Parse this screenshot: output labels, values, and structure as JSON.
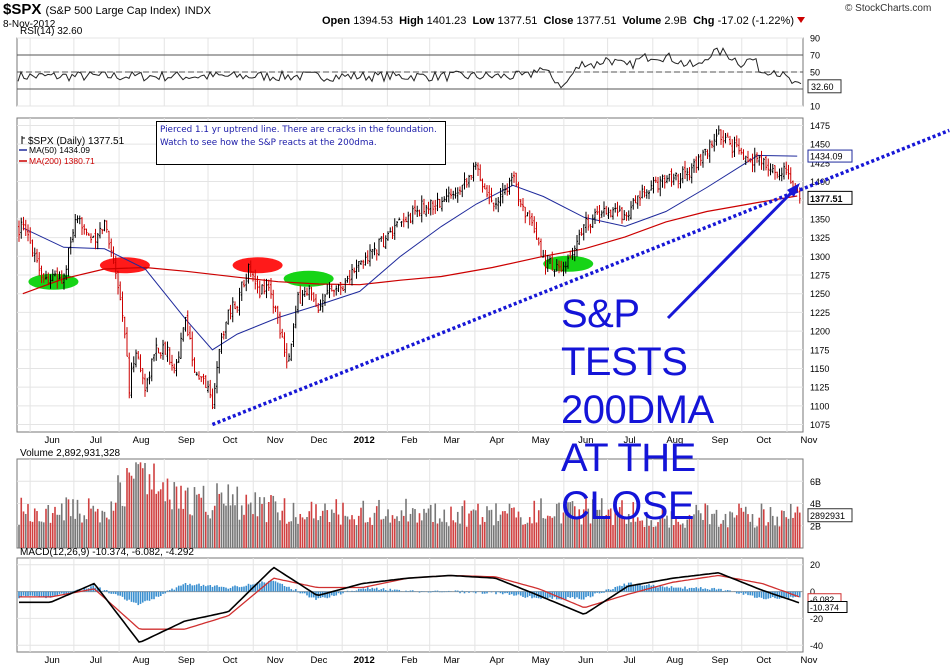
{
  "header": {
    "symbol": "$SPX",
    "name": "(S&P 500 Large Cap Index)",
    "exchange": "INDX",
    "date": "8-Nov-2012",
    "open_label": "Open",
    "open": "1394.53",
    "high_label": "High",
    "high": "1401.23",
    "low_label": "Low",
    "low": "1377.51",
    "close_label": "Close",
    "close": "1377.51",
    "volume_label": "Volume",
    "volume": "2.9B",
    "chg_label": "Chg",
    "chg": "-17.02 (-1.22%)",
    "brand": "© StockCharts.com"
  },
  "colors": {
    "up": "#000000",
    "down": "#cc0000",
    "ma50": "#1f2a9c",
    "ma200": "#cc0000",
    "trend": "#1717d6",
    "green": "#16d416",
    "red": "#ff1a1a",
    "histogram": "#3a8fd0",
    "grid": "#e4e4e4"
  },
  "annotation": {
    "note": "Pierced 1.1 yr uptrend line. There are cracks in the foundation. Watch to see how the S&P reacts at the 200dma.",
    "big_text": [
      "S&P",
      "TESTS",
      "200DMA",
      "AT THE",
      "CLOSE"
    ]
  },
  "chart_data": [
    {
      "type": "line",
      "panel": "rsi",
      "label": "RSI(14) 32.60",
      "last_value": "32.60",
      "y_ticks": [
        "90",
        "70",
        "50",
        "30",
        "10"
      ],
      "ylim": [
        10,
        90
      ],
      "levels": [
        70,
        50,
        30
      ],
      "x": [
        "2012-05-08",
        "2012-05-15",
        "2012-05-22",
        "2012-06-01",
        "2012-06-08",
        "2012-06-15",
        "2012-06-22",
        "2012-07-01",
        "2012-07-08",
        "2012-07-15",
        "2012-07-22",
        "2012-08-01",
        "2012-08-08",
        "2012-08-15",
        "2012-08-22",
        "2012-09-01",
        "2012-09-08",
        "2012-09-15",
        "2012-09-22",
        "2012-10-01",
        "2012-10-08",
        "2012-10-15",
        "2012-10-22",
        "2012-11-01",
        "2012-11-08"
      ],
      "values": [
        45,
        56,
        46,
        33,
        50,
        62,
        58,
        66,
        60,
        56,
        64,
        70,
        68,
        66,
        60,
        56,
        70,
        75,
        70,
        60,
        66,
        50,
        54,
        42,
        32.6
      ]
    },
    {
      "type": "line",
      "panel": "price",
      "title": "$SPX (Daily) 1377.51",
      "y_ticks": [
        "1475",
        "1450",
        "1425",
        "1400",
        "1375",
        "1350",
        "1325",
        "1300",
        "1275",
        "1250",
        "1225",
        "1200",
        "1175",
        "1150",
        "1125",
        "1100",
        "1075"
      ],
      "ylim": [
        1065,
        1485
      ],
      "x_ticks": [
        "Jun",
        "Jul",
        "Aug",
        "Sep",
        "Oct",
        "Nov",
        "Dec",
        "2012",
        "Feb",
        "Mar",
        "Apr",
        "May",
        "Jun",
        "Jul",
        "Aug",
        "Sep",
        "Oct",
        "Nov"
      ],
      "series": [
        {
          "name": "$SPX",
          "x": [
            "2011-05-27",
            "2011-06-03",
            "2011-06-10",
            "2011-06-17",
            "2011-06-24",
            "2011-07-01",
            "2011-07-08",
            "2011-07-15",
            "2011-07-22",
            "2011-07-29",
            "2011-08-05",
            "2011-08-08",
            "2011-08-12",
            "2011-08-19",
            "2011-08-26",
            "2011-09-02",
            "2011-09-09",
            "2011-09-16",
            "2011-09-23",
            "2011-09-30",
            "2011-10-04",
            "2011-10-07",
            "2011-10-14",
            "2011-10-21",
            "2011-10-28",
            "2011-11-04",
            "2011-11-11",
            "2011-11-18",
            "2011-11-25",
            "2011-12-02",
            "2011-12-09",
            "2011-12-16",
            "2011-12-23",
            "2011-12-30",
            "2012-01-13",
            "2012-01-27",
            "2012-02-10",
            "2012-02-24",
            "2012-03-09",
            "2012-03-23",
            "2012-04-02",
            "2012-04-13",
            "2012-04-27",
            "2012-05-04",
            "2012-05-18",
            "2012-06-01",
            "2012-06-15",
            "2012-06-29",
            "2012-07-13",
            "2012-07-27",
            "2012-08-10",
            "2012-08-24",
            "2012-09-07",
            "2012-09-14",
            "2012-09-28",
            "2012-10-12",
            "2012-10-26",
            "2012-11-02",
            "2012-11-08"
          ],
          "values": [
            1338,
            1312,
            1270,
            1271,
            1268,
            1340,
            1344,
            1316,
            1345,
            1292,
            1199,
            1119,
            1178,
            1123,
            1177,
            1174,
            1154,
            1216,
            1136,
            1131,
            1099,
            1155,
            1224,
            1238,
            1285,
            1253,
            1263,
            1216,
            1158,
            1244,
            1255,
            1219,
            1265,
            1257,
            1289,
            1316,
            1342,
            1365,
            1371,
            1397,
            1419,
            1370,
            1403,
            1369,
            1295,
            1278,
            1343,
            1362,
            1356,
            1386,
            1405,
            1411,
            1438,
            1465,
            1440,
            1428,
            1411,
            1414,
            1377.51
          ]
        },
        {
          "name": "MA(50) 1434.09",
          "x": [
            "2011-05-27",
            "2011-06-24",
            "2011-07-22",
            "2011-08-19",
            "2011-09-16",
            "2011-10-04",
            "2011-10-21",
            "2011-11-18",
            "2011-12-16",
            "2012-01-13",
            "2012-02-10",
            "2012-03-09",
            "2012-04-02",
            "2012-04-27",
            "2012-05-18",
            "2012-06-15",
            "2012-07-13",
            "2012-08-10",
            "2012-09-07",
            "2012-10-12",
            "2012-11-08"
          ],
          "values": [
            1338,
            1312,
            1310,
            1283,
            1215,
            1175,
            1196,
            1218,
            1235,
            1253,
            1300,
            1340,
            1370,
            1395,
            1380,
            1352,
            1340,
            1360,
            1392,
            1435,
            1434.09
          ]
        },
        {
          "name": "MA(200) 1380.71",
          "x": [
            "2011-05-27",
            "2011-06-24",
            "2011-07-22",
            "2011-08-19",
            "2011-09-16",
            "2011-10-21",
            "2011-11-18",
            "2011-12-16",
            "2012-01-13",
            "2012-02-10",
            "2012-03-09",
            "2012-04-13",
            "2012-05-18",
            "2012-06-15",
            "2012-07-13",
            "2012-08-10",
            "2012-09-07",
            "2012-10-12",
            "2012-11-08"
          ],
          "values": [
            1250,
            1270,
            1283,
            1285,
            1280,
            1272,
            1266,
            1263,
            1262,
            1268,
            1273,
            1285,
            1300,
            1310,
            1326,
            1346,
            1360,
            1372,
            1380.71
          ]
        },
        {
          "name": "Uptrend line",
          "x": [
            "2011-10-04",
            "2012-11-30"
          ],
          "values": [
            1075,
            1435
          ]
        }
      ],
      "highlights": [
        {
          "color": "green",
          "x": "2011-06-17",
          "y": 1266
        },
        {
          "color": "red",
          "x": "2011-08-05",
          "y": 1288
        },
        {
          "color": "red",
          "x": "2011-11-04",
          "y": 1288
        },
        {
          "color": "green",
          "x": "2011-12-09",
          "y": 1270
        },
        {
          "color": "green",
          "x": "2012-06-04",
          "y": 1290
        }
      ],
      "price_label": "1377.51",
      "ma50_label": "1434.09"
    },
    {
      "type": "bar",
      "panel": "volume",
      "title": "Volume 2,892,931,328",
      "y_ticks": [
        "6B",
        "4B",
        "2B"
      ],
      "ylim": [
        0,
        8
      ],
      "unit": "billions",
      "x": [
        "2011-06",
        "2011-07",
        "2011-08",
        "2011-09",
        "2011-10",
        "2011-11",
        "2011-12",
        "2012-01",
        "2012-02",
        "2012-03",
        "2012-04",
        "2012-05",
        "2012-06",
        "2012-07",
        "2012-08",
        "2012-09",
        "2012-10",
        "2012-11"
      ],
      "values": [
        3.8,
        3.6,
        6.8,
        4.6,
        4.8,
        3.9,
        3.7,
        3.5,
        3.6,
        3.4,
        3.5,
        3.7,
        3.8,
        3.4,
        3.0,
        3.3,
        3.2,
        3.4
      ],
      "last_value": "2892931"
    },
    {
      "type": "line",
      "panel": "macd",
      "title": "MACD(12,26,9) -10.374, -6.082, -4.292",
      "y_ticks": [
        "20",
        "0",
        "-20",
        "-40"
      ],
      "ylim": [
        -45,
        25
      ],
      "series": [
        {
          "name": "MACD",
          "x": [
            "2011-06",
            "2011-07",
            "2011-08",
            "2011-09",
            "2011-10",
            "2011-11",
            "2011-12",
            "2012-01",
            "2012-02",
            "2012-03",
            "2012-04",
            "2012-05",
            "2012-06",
            "2012-07",
            "2012-08",
            "2012-09",
            "2012-10",
            "2012-11"
          ],
          "values": [
            -8,
            6,
            -38,
            -22,
            -15,
            18,
            -3,
            6,
            10,
            12,
            10,
            -3,
            -17,
            4,
            10,
            14,
            1,
            -10.374
          ]
        },
        {
          "name": "Signal",
          "x": [
            "2011-06",
            "2011-07",
            "2011-08",
            "2011-09",
            "2011-10",
            "2011-11",
            "2011-12",
            "2012-01",
            "2012-02",
            "2012-03",
            "2012-04",
            "2012-05",
            "2012-06",
            "2012-07",
            "2012-08",
            "2012-09",
            "2012-10",
            "2012-11"
          ],
          "values": [
            -4,
            2,
            -28,
            -28,
            -18,
            10,
            3,
            3,
            10,
            12,
            11,
            2,
            -12,
            -2,
            7,
            12,
            6,
            -6.082
          ]
        },
        {
          "name": "Histogram",
          "x": [
            "2011-06",
            "2011-07",
            "2011-08",
            "2011-09",
            "2011-10",
            "2011-11",
            "2011-12",
            "2012-01",
            "2012-02",
            "2012-03",
            "2012-04",
            "2012-05",
            "2012-06",
            "2012-07",
            "2012-08",
            "2012-09",
            "2012-10",
            "2012-11"
          ],
          "values": [
            -4,
            4,
            -10,
            6,
            3,
            8,
            -6,
            3,
            0,
            0,
            -1,
            -5,
            -5,
            6,
            3,
            2,
            -5,
            -4.292
          ]
        }
      ],
      "labels": [
        "-6.082",
        "-10.374"
      ]
    }
  ]
}
